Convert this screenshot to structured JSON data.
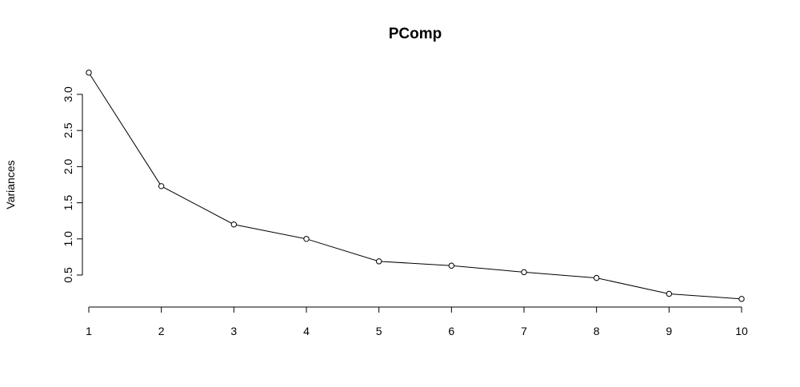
{
  "chart_data": {
    "type": "line",
    "title": "PComp",
    "xlabel": "",
    "ylabel": "Variances",
    "x": [
      1,
      2,
      3,
      4,
      5,
      6,
      7,
      8,
      9,
      10
    ],
    "series": [
      {
        "values": [
          3.3,
          1.73,
          1.2,
          1.0,
          0.69,
          0.63,
          0.54,
          0.46,
          0.24,
          0.17
        ]
      }
    ],
    "xticks": [
      "1",
      "2",
      "3",
      "4",
      "5",
      "6",
      "7",
      "8",
      "9",
      "10"
    ],
    "yticks": [
      0.5,
      1.0,
      1.5,
      2.0,
      2.5,
      3.0
    ],
    "ytick_labels": [
      "0.5",
      "1.0",
      "1.5",
      "2.0",
      "2.5",
      "3.0"
    ],
    "xlim": [
      1,
      10
    ],
    "ylim": [
      0.17,
      3.3
    ],
    "grid": false,
    "markers": "open-circle",
    "line_color": "#000000"
  }
}
